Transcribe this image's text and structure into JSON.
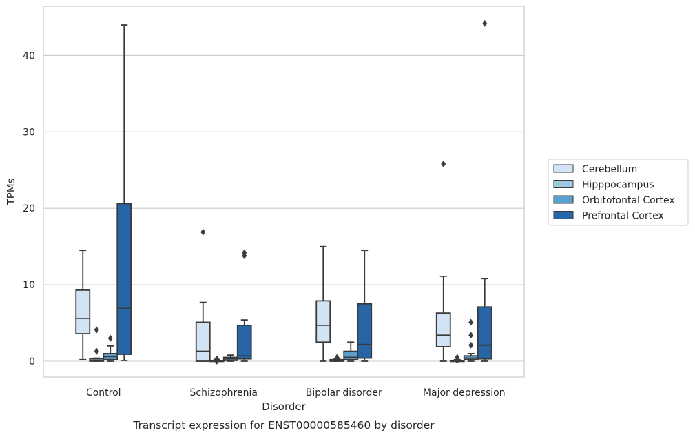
{
  "caption": "Transcript expression for ENST00000585460 by disorder",
  "chart_data": {
    "type": "box",
    "xlabel": "Disorder",
    "ylabel": "TPMs",
    "ylim": [
      -2.1,
      46.5
    ],
    "yticks": [
      0,
      10,
      20,
      30,
      40
    ],
    "grid": "horizontal",
    "legend_position": "right",
    "categories": [
      "Control",
      "Schizophrenia",
      "Bipolar disorder",
      "Major depression"
    ],
    "series": [
      {
        "name": "Cerebellum",
        "color": "#d2e3f3",
        "boxes": [
          {
            "whislo": 0.2,
            "q1": 3.6,
            "med": 5.6,
            "q3": 9.3,
            "whishi": 14.5,
            "fliers": []
          },
          {
            "whislo": 0.0,
            "q1": 0.0,
            "med": 1.3,
            "q3": 5.1,
            "whishi": 7.7,
            "fliers": [
              16.9
            ]
          },
          {
            "whislo": 0.0,
            "q1": 2.5,
            "med": 4.7,
            "q3": 7.9,
            "whishi": 15.0,
            "fliers": []
          },
          {
            "whislo": 0.0,
            "q1": 1.9,
            "med": 3.4,
            "q3": 6.3,
            "whishi": 11.1,
            "fliers": [
              25.8
            ]
          }
        ]
      },
      {
        "name": "Hipppocampus",
        "color": "#9ecae1",
        "boxes": [
          {
            "whislo": 0.0,
            "q1": 0.0,
            "med": 0.1,
            "q3": 0.3,
            "whishi": 0.4,
            "fliers": [
              4.1,
              1.3
            ]
          },
          {
            "whislo": 0.0,
            "q1": 0.0,
            "med": 0.05,
            "q3": 0.1,
            "whishi": 0.2,
            "fliers": [
              0.3,
              0.0
            ]
          },
          {
            "whislo": 0.0,
            "q1": 0.0,
            "med": 0.05,
            "q3": 0.2,
            "whishi": 0.3,
            "fliers": [
              0.5
            ]
          },
          {
            "whislo": 0.0,
            "q1": 0.0,
            "med": 0.05,
            "q3": 0.1,
            "whishi": 0.2,
            "fliers": [
              0.5,
              0.1
            ]
          }
        ]
      },
      {
        "name": "Orbitofontal Cortex",
        "color": "#5b9fcf",
        "boxes": [
          {
            "whislo": 0.0,
            "q1": 0.2,
            "med": 0.6,
            "q3": 1.0,
            "whishi": 2.0,
            "fliers": [
              3.0
            ]
          },
          {
            "whislo": 0.0,
            "q1": 0.1,
            "med": 0.3,
            "q3": 0.5,
            "whishi": 0.8,
            "fliers": []
          },
          {
            "whislo": 0.0,
            "q1": 0.2,
            "med": 0.5,
            "q3": 1.3,
            "whishi": 2.5,
            "fliers": []
          },
          {
            "whislo": 0.0,
            "q1": 0.2,
            "med": 0.4,
            "q3": 0.7,
            "whishi": 1.0,
            "fliers": [
              5.1,
              3.4,
              2.1
            ]
          }
        ]
      },
      {
        "name": "Prefrontal Cortex",
        "color": "#2765a7",
        "boxes": [
          {
            "whislo": 0.1,
            "q1": 0.9,
            "med": 6.9,
            "q3": 20.6,
            "whishi": 44.0,
            "fliers": []
          },
          {
            "whislo": 0.0,
            "q1": 0.3,
            "med": 0.7,
            "q3": 4.7,
            "whishi": 5.4,
            "fliers": [
              14.2,
              13.8
            ]
          },
          {
            "whislo": 0.0,
            "q1": 0.4,
            "med": 2.2,
            "q3": 7.5,
            "whishi": 14.5,
            "fliers": []
          },
          {
            "whislo": 0.0,
            "q1": 0.3,
            "med": 2.1,
            "q3": 7.1,
            "whishi": 10.8,
            "fliers": [
              44.2
            ]
          }
        ]
      }
    ]
  }
}
